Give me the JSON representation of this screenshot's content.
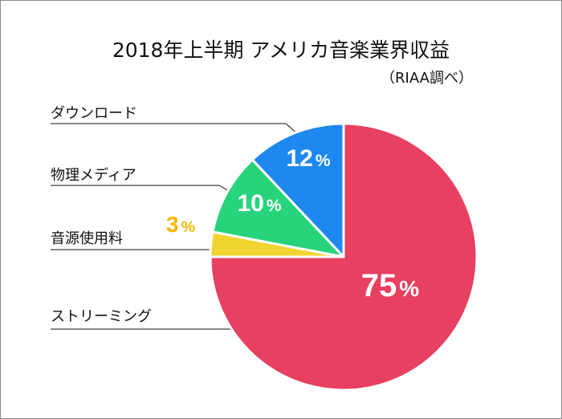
{
  "chart_data": {
    "type": "pie",
    "title": "2018年上半期 アメリカ音楽業界収益",
    "subtitle": "（RIAA調べ）",
    "slices": [
      {
        "label": "ストリーミング",
        "value": 75,
        "value_label": "75%",
        "color": "#e84060"
      },
      {
        "label": "音源使用料",
        "value": 3,
        "value_label": "3%",
        "color": "#f2d431"
      },
      {
        "label": "物理メディア",
        "value": 10,
        "value_label": "10%",
        "color": "#27d47c"
      },
      {
        "label": "ダウンロード",
        "value": 12,
        "value_label": "12%",
        "color": "#1e88f0"
      }
    ],
    "start_angle": "12 o'clock",
    "direction": "clockwise",
    "label_color_small": "#f5b800"
  }
}
